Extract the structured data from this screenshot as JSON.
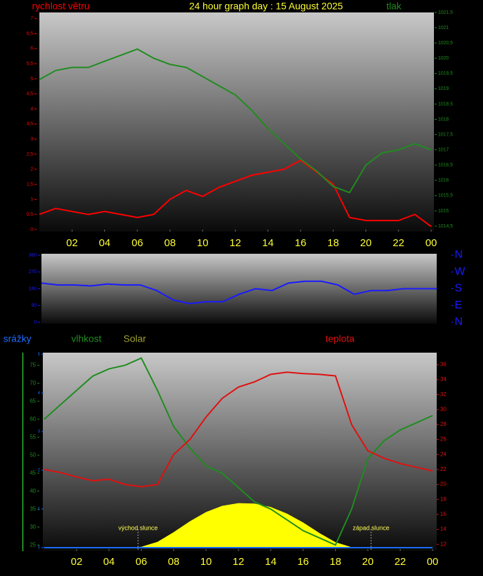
{
  "chart_data": [
    {
      "type": "line",
      "title": "24 hour graph day : 15 August 2025",
      "x": [
        0,
        1,
        2,
        3,
        4,
        5,
        6,
        7,
        8,
        9,
        10,
        11,
        12,
        13,
        14,
        15,
        16,
        17,
        18,
        19,
        20,
        21,
        22,
        23,
        24
      ],
      "xlim": [
        0,
        24
      ],
      "xticks": [
        {
          "value": 2,
          "label": "02"
        },
        {
          "value": 4,
          "label": "04"
        },
        {
          "value": 6,
          "label": "06"
        },
        {
          "value": 8,
          "label": "08"
        },
        10,
        12,
        14,
        16,
        18,
        20,
        22,
        {
          "value": 24,
          "label": "00"
        }
      ],
      "ylim": [
        -0.07,
        7.2
      ],
      "yticks": [
        0,
        {
          "value": 0.5,
          "label": "0,5"
        },
        1,
        {
          "value": 1.5,
          "label": "1,5"
        },
        2,
        {
          "value": 2.5,
          "label": "2,5"
        },
        3,
        {
          "value": 3.5,
          "label": "3,5"
        },
        4,
        {
          "value": 4.5,
          "label": "4,5"
        },
        5,
        {
          "value": 5.5,
          "label": "5,5"
        },
        6,
        {
          "value": 6.5,
          "label": "6,5"
        },
        7
      ],
      "y2lim": [
        1014.32,
        1021.5
      ],
      "y2ticks": [
        {
          "value": 1014.5,
          "label": "1014,5"
        },
        1015,
        {
          "value": 1015.5,
          "label": "1015,5"
        },
        1016,
        {
          "value": 1016.5,
          "label": "1016,5"
        },
        1017,
        {
          "value": 1017.5,
          "label": "1017,5"
        },
        1018,
        {
          "value": 1018.5,
          "label": "1018,5"
        },
        1019,
        {
          "value": 1019.5,
          "label": "1019,5"
        },
        1020,
        {
          "value": 1020.5,
          "label": "1020,5"
        },
        1021,
        {
          "value": 1021.5,
          "label": "1021,5"
        }
      ],
      "series": [
        {
          "name": "rychlost větru",
          "color": "#ff0000",
          "values": [
            0.5,
            0.7,
            0.6,
            0.5,
            0.6,
            0.5,
            0.4,
            0.5,
            1.0,
            1.3,
            1.1,
            1.4,
            1.6,
            1.8,
            1.9,
            2.0,
            2.3,
            1.9,
            1.5,
            0.4,
            0.3,
            0.3,
            0.3,
            0.5,
            0.1
          ]
        },
        {
          "name": "tlak",
          "color": "#1f8c1f",
          "axis": "y2",
          "values": [
            1019.3,
            1019.6,
            1019.7,
            1019.7,
            1019.9,
            1020.1,
            1020.3,
            1020.0,
            1019.8,
            1019.7,
            1019.4,
            1019.1,
            1018.8,
            1018.3,
            1017.7,
            1017.2,
            1016.7,
            1016.3,
            1015.8,
            1015.6,
            1016.5,
            1016.9,
            1017.0,
            1017.2,
            1017.0
          ]
        }
      ]
    },
    {
      "type": "line",
      "x": [
        0,
        1,
        2,
        3,
        4,
        5,
        6,
        7,
        8,
        9,
        10,
        11,
        12,
        13,
        14,
        15,
        16,
        17,
        18,
        19,
        20,
        21,
        22,
        23,
        24
      ],
      "xlim": [
        0,
        24
      ],
      "ylim": [
        0,
        360
      ],
      "yticks": [
        0,
        90,
        180,
        270,
        360
      ],
      "y2lim": [
        0,
        360
      ],
      "y2ticks": [
        {
          "value": 0,
          "label": "N"
        },
        {
          "value": 90,
          "label": "E"
        },
        {
          "value": 180,
          "label": "S"
        },
        {
          "value": 270,
          "label": "W"
        },
        {
          "value": 360,
          "label": "N"
        }
      ],
      "series": [
        {
          "color": "#1a1aff",
          "values": [
            210,
            200,
            200,
            195,
            205,
            200,
            200,
            170,
            120,
            100,
            110,
            110,
            150,
            180,
            170,
            210,
            220,
            220,
            200,
            150,
            170,
            170,
            180,
            180,
            180
          ]
        }
      ]
    },
    {
      "type": "line",
      "x": [
        0,
        1,
        2,
        3,
        4,
        5,
        6,
        7,
        8,
        9,
        10,
        11,
        12,
        13,
        14,
        15,
        16,
        17,
        18,
        19,
        20,
        21,
        22,
        23,
        24
      ],
      "xlim": [
        0,
        24
      ],
      "xticks": [
        {
          "value": 2,
          "label": "02"
        },
        {
          "value": 4,
          "label": "04"
        },
        {
          "value": 6,
          "label": "06"
        },
        {
          "value": 8,
          "label": "08"
        },
        10,
        12,
        14,
        16,
        18,
        20,
        22,
        {
          "value": 24,
          "label": "00"
        }
      ],
      "ylim": [
        23.3,
        78.5
      ],
      "yticks": [
        25,
        30,
        35,
        40,
        45,
        50,
        55,
        60,
        65,
        70,
        75
      ],
      "y2lim": [
        11.1,
        37.6
      ],
      "y2ticks": [
        12,
        14,
        16,
        18,
        20,
        22,
        24,
        26,
        28,
        30,
        32,
        34,
        36
      ],
      "y3lim": [
        -0.09,
        5.04
      ],
      "y3ticks": [
        0,
        1,
        2,
        3,
        4,
        5
      ],
      "annotations": [
        {
          "text": "východ slunce",
          "x": 5.8
        },
        {
          "text": "západ slunce",
          "x": 20.2
        }
      ],
      "series": [
        {
          "name": "srážky",
          "color": "#1a6cff",
          "axis": "y3",
          "values": [
            0,
            0,
            0,
            0,
            0,
            0,
            0,
            0,
            0,
            0,
            0,
            0,
            0,
            0,
            0,
            0,
            0,
            0,
            0,
            0,
            0,
            0,
            0,
            0,
            0
          ]
        },
        {
          "name": "vlhkost",
          "color": "#1f8c1f",
          "values": [
            60,
            64,
            68,
            72,
            74,
            75,
            77,
            68,
            58,
            52,
            47,
            45,
            41,
            37,
            35,
            32,
            29,
            27,
            25,
            35,
            49,
            54,
            57,
            59,
            61
          ]
        },
        {
          "name": "Solar",
          "color": "#ffff00",
          "axis": "y3",
          "type": "area",
          "values": [
            0,
            0,
            0,
            0,
            0,
            0,
            0.02,
            0.15,
            0.4,
            0.68,
            0.92,
            1.08,
            1.15,
            1.14,
            1.05,
            0.88,
            0.65,
            0.38,
            0.14,
            0.01,
            0,
            0,
            0,
            0,
            0
          ]
        },
        {
          "name": "teplota",
          "color": "#e01010",
          "axis": "y2",
          "values": [
            22,
            21.6,
            21,
            20.5,
            20.7,
            20,
            19.7,
            20,
            24,
            26,
            29,
            31.5,
            33,
            33.7,
            34.7,
            35,
            34.8,
            34.7,
            34.5,
            28,
            24.5,
            23.5,
            22.8,
            22.3,
            21.8
          ]
        }
      ]
    }
  ]
}
